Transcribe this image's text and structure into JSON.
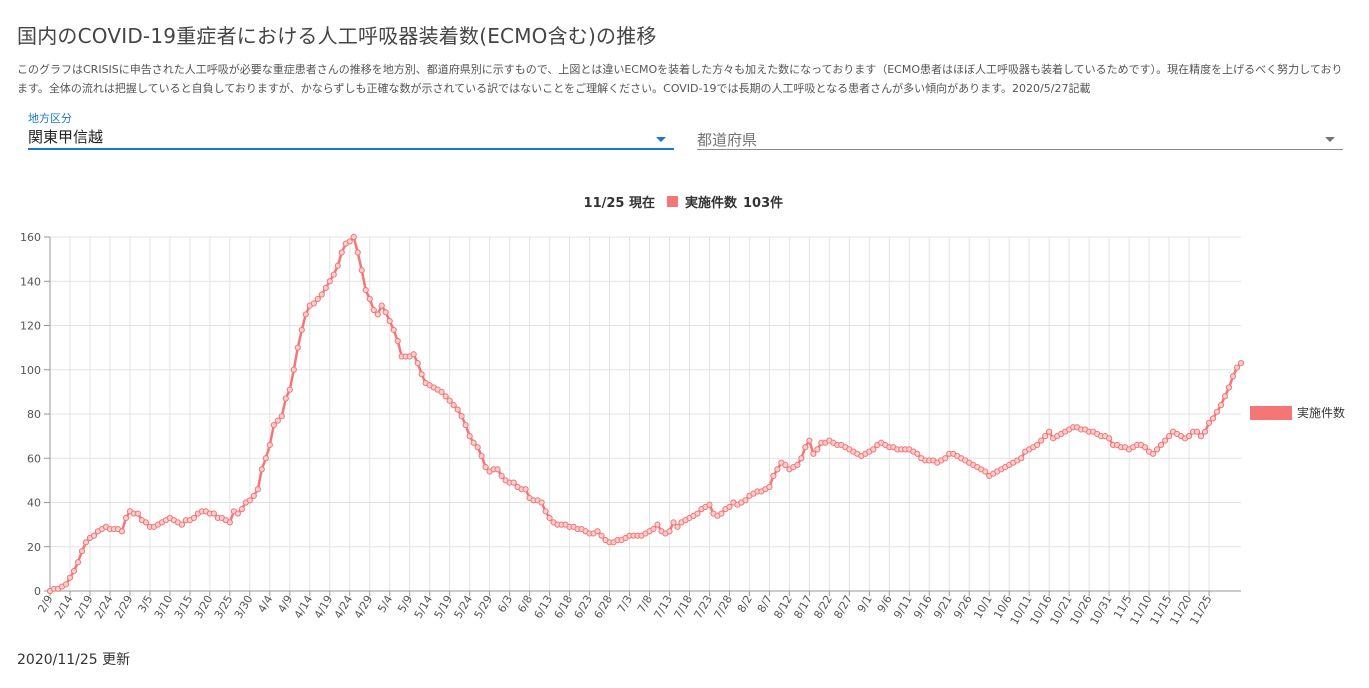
{
  "page": {
    "title": "国内のCOVID-19重症者における人工呼吸器装着数(ECMO含む)の推移",
    "description": "このグラフはCRISISに申告された人工呼吸が必要な重症患者さんの推移を地方別、都道府県別に示すもので、上図とは違いECMOを装着した方々も加えた数になっております（ECMO患者はほぼ人工呼吸器も装着しているためです）。現在精度を上げるべく努力しております。全体の流れは把握していると自負しておりますが、かならずしも正確な数が示されている訳ではないことをご理解ください。COVID-19では長期の人工呼吸となる患者さんが多い傾向があります。2020/5/27記載",
    "updated": "2020/11/25 更新"
  },
  "filters": {
    "region": {
      "label": "地方区分",
      "value": "関東甲信越"
    },
    "prefecture": {
      "placeholder": "都道府県"
    }
  },
  "colors": {
    "series": "#f47676",
    "accent": "#1976d2",
    "grid": "#e3e3e3"
  },
  "chart_data": {
    "type": "line",
    "header": {
      "date": "11/25 現在",
      "series_label": "実施件数",
      "total": "103件"
    },
    "legend": {
      "label": "実施件数",
      "position": "right"
    },
    "ylim": [
      0,
      160
    ],
    "yticks": [
      0,
      20,
      40,
      60,
      80,
      100,
      120,
      140,
      160
    ],
    "grid": true,
    "xlabels": [
      "2/9",
      "2/14",
      "2/19",
      "2/24",
      "2/29",
      "3/5",
      "3/10",
      "3/15",
      "3/20",
      "3/25",
      "3/30",
      "4/4",
      "4/9",
      "4/14",
      "4/19",
      "4/24",
      "4/29",
      "5/4",
      "5/9",
      "5/14",
      "5/19",
      "5/24",
      "5/29",
      "6/3",
      "6/8",
      "6/13",
      "6/18",
      "6/23",
      "6/28",
      "7/3",
      "7/8",
      "7/13",
      "7/18",
      "7/23",
      "7/28",
      "8/2",
      "8/7",
      "8/12",
      "8/17",
      "8/22",
      "8/27",
      "9/1",
      "9/6",
      "9/11",
      "9/16",
      "9/21",
      "9/26",
      "10/1",
      "10/6",
      "10/11",
      "10/16",
      "10/21",
      "10/26",
      "10/31",
      "11/5",
      "11/10",
      "11/15",
      "11/20",
      "11/25"
    ],
    "values": [
      0,
      1,
      1,
      2,
      3,
      6,
      9,
      13,
      18,
      22,
      24,
      25,
      27,
      28,
      29,
      28,
      28,
      28,
      27,
      33,
      36,
      35,
      35,
      32,
      31,
      29,
      29,
      30,
      31,
      32,
      33,
      32,
      31,
      30,
      32,
      32,
      33,
      35,
      36,
      36,
      35,
      35,
      33,
      33,
      32,
      31,
      36,
      35,
      37,
      40,
      41,
      43,
      46,
      55,
      60,
      66,
      75,
      77,
      79,
      87,
      91,
      100,
      110,
      118,
      125,
      129,
      130,
      132,
      134,
      137,
      140,
      143,
      147,
      153,
      157,
      158,
      160,
      153,
      145,
      136,
      132,
      127,
      125,
      129,
      126,
      122,
      118,
      113,
      106,
      106,
      106,
      107,
      103,
      98,
      94,
      93,
      92,
      91,
      90,
      88,
      86,
      84,
      82,
      79,
      75,
      70,
      67,
      65,
      61,
      56,
      54,
      55,
      55,
      52,
      50,
      49,
      49,
      47,
      46,
      46,
      42,
      41,
      41,
      40,
      36,
      33,
      31,
      30,
      30,
      30,
      29,
      29,
      28,
      28,
      27,
      26,
      26,
      27,
      25,
      23,
      22,
      22,
      23,
      23,
      24,
      25,
      25,
      25,
      25,
      26,
      27,
      28,
      30,
      27,
      26,
      27,
      31,
      29,
      31,
      32,
      33,
      34,
      35,
      37,
      38,
      39,
      35,
      34,
      35,
      37,
      38,
      40,
      39,
      40,
      41,
      43,
      44,
      45,
      45,
      46,
      47,
      52,
      55,
      58,
      57,
      55,
      56,
      57,
      60,
      65,
      68,
      62,
      64,
      67,
      67,
      68,
      67,
      66,
      66,
      65,
      64,
      63,
      62,
      61,
      62,
      63,
      64,
      66,
      67,
      66,
      65,
      65,
      64,
      64,
      64,
      64,
      63,
      62,
      60,
      59,
      59,
      59,
      58,
      59,
      60,
      62,
      62,
      61,
      60,
      59,
      58,
      57,
      56,
      55,
      54,
      52,
      53,
      54,
      55,
      56,
      57,
      58,
      59,
      60,
      63,
      64,
      65,
      66,
      68,
      70,
      72,
      69,
      70,
      71,
      72,
      73,
      74,
      74,
      73,
      73,
      72,
      72,
      71,
      70,
      70,
      69,
      66,
      66,
      65,
      65,
      64,
      65,
      66,
      66,
      65,
      63,
      62,
      64,
      66,
      68,
      70,
      72,
      71,
      70,
      69,
      70,
      72,
      72,
      70,
      72,
      76,
      78,
      81,
      84,
      88,
      92,
      97,
      101,
      103
    ]
  }
}
